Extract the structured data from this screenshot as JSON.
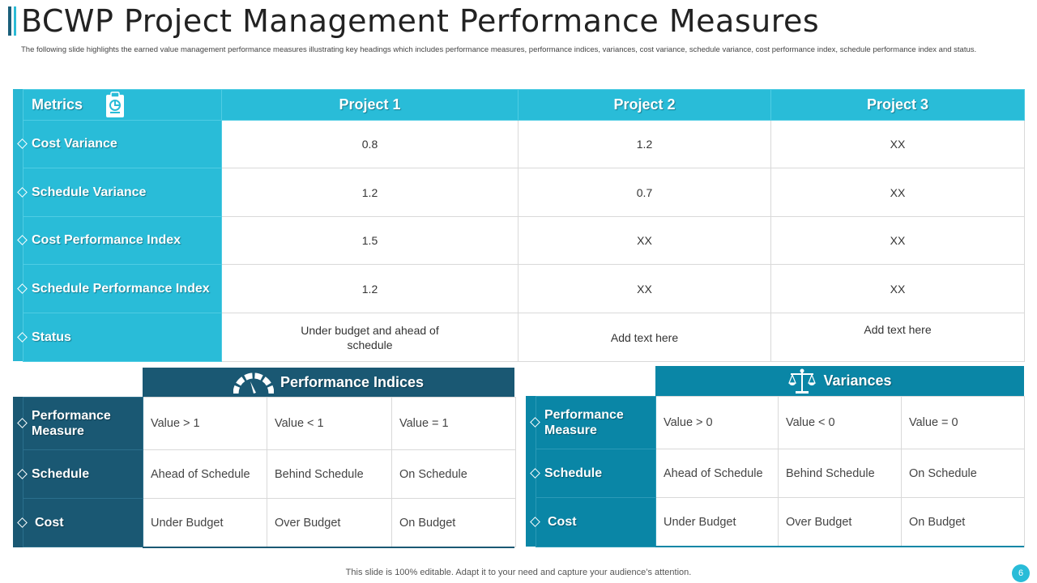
{
  "title": "BCWP Project Management Performance Measures",
  "subtitle": "The following slide highlights the earned value management performance measures illustrating key headings which includes performance measures, performance indices, variances, cost variance, schedule variance, cost performance index, schedule performance index and status.",
  "main_table": {
    "header": {
      "metrics": "Metrics",
      "p1": "Project 1",
      "p2": "Project 2",
      "p3": "Project 3"
    },
    "rows": [
      {
        "label": "Cost Variance",
        "p1": "0.8",
        "p2": "1.2",
        "p3": "XX"
      },
      {
        "label": "Schedule Variance",
        "p1": "1.2",
        "p2": "0.7",
        "p3": "XX"
      },
      {
        "label": "Cost Performance Index",
        "p1": "1.5",
        "p2": "XX",
        "p3": "XX"
      },
      {
        "label": "Schedule Performance Index",
        "p1": "1.2",
        "p2": "XX",
        "p3": "XX"
      },
      {
        "label": "Status",
        "p1": "Under budget and ahead of schedule",
        "p2": "Add text here",
        "p3": "Add text here"
      }
    ]
  },
  "performance_indices": {
    "title": "Performance Indices",
    "icon": "gauge-icon",
    "rows": [
      {
        "label": "Performance Measure",
        "c1": "Value  > 1",
        "c2": "Value  < 1",
        "c3": "Value  = 1"
      },
      {
        "label": "Schedule",
        "c1": "Ahead of Schedule",
        "c2": "Behind Schedule",
        "c3": "On Schedule"
      },
      {
        "label": "Cost",
        "c1": "Under Budget",
        "c2": "Over Budget",
        "c3": "On Budget"
      }
    ]
  },
  "variances": {
    "title": "Variances",
    "icon": "scales-icon",
    "rows": [
      {
        "label": "Performance Measure",
        "c1": "Value  > 0",
        "c2": "Value  < 0",
        "c3": "Value  = 0"
      },
      {
        "label": "Schedule",
        "c1": "Ahead of Schedule",
        "c2": "Behind Schedule",
        "c3": "On Schedule"
      },
      {
        "label": "Cost",
        "c1": "Under Budget",
        "c2": "Over Budget",
        "c3": "On Budget"
      }
    ]
  },
  "footer": "This slide is 100% editable. Adapt it to your need and capture your audience’s attention.",
  "page_number": "6",
  "colors": {
    "accent": "#29bcd8",
    "dark_teal": "#1a5873",
    "mid_teal": "#0a86a6"
  }
}
